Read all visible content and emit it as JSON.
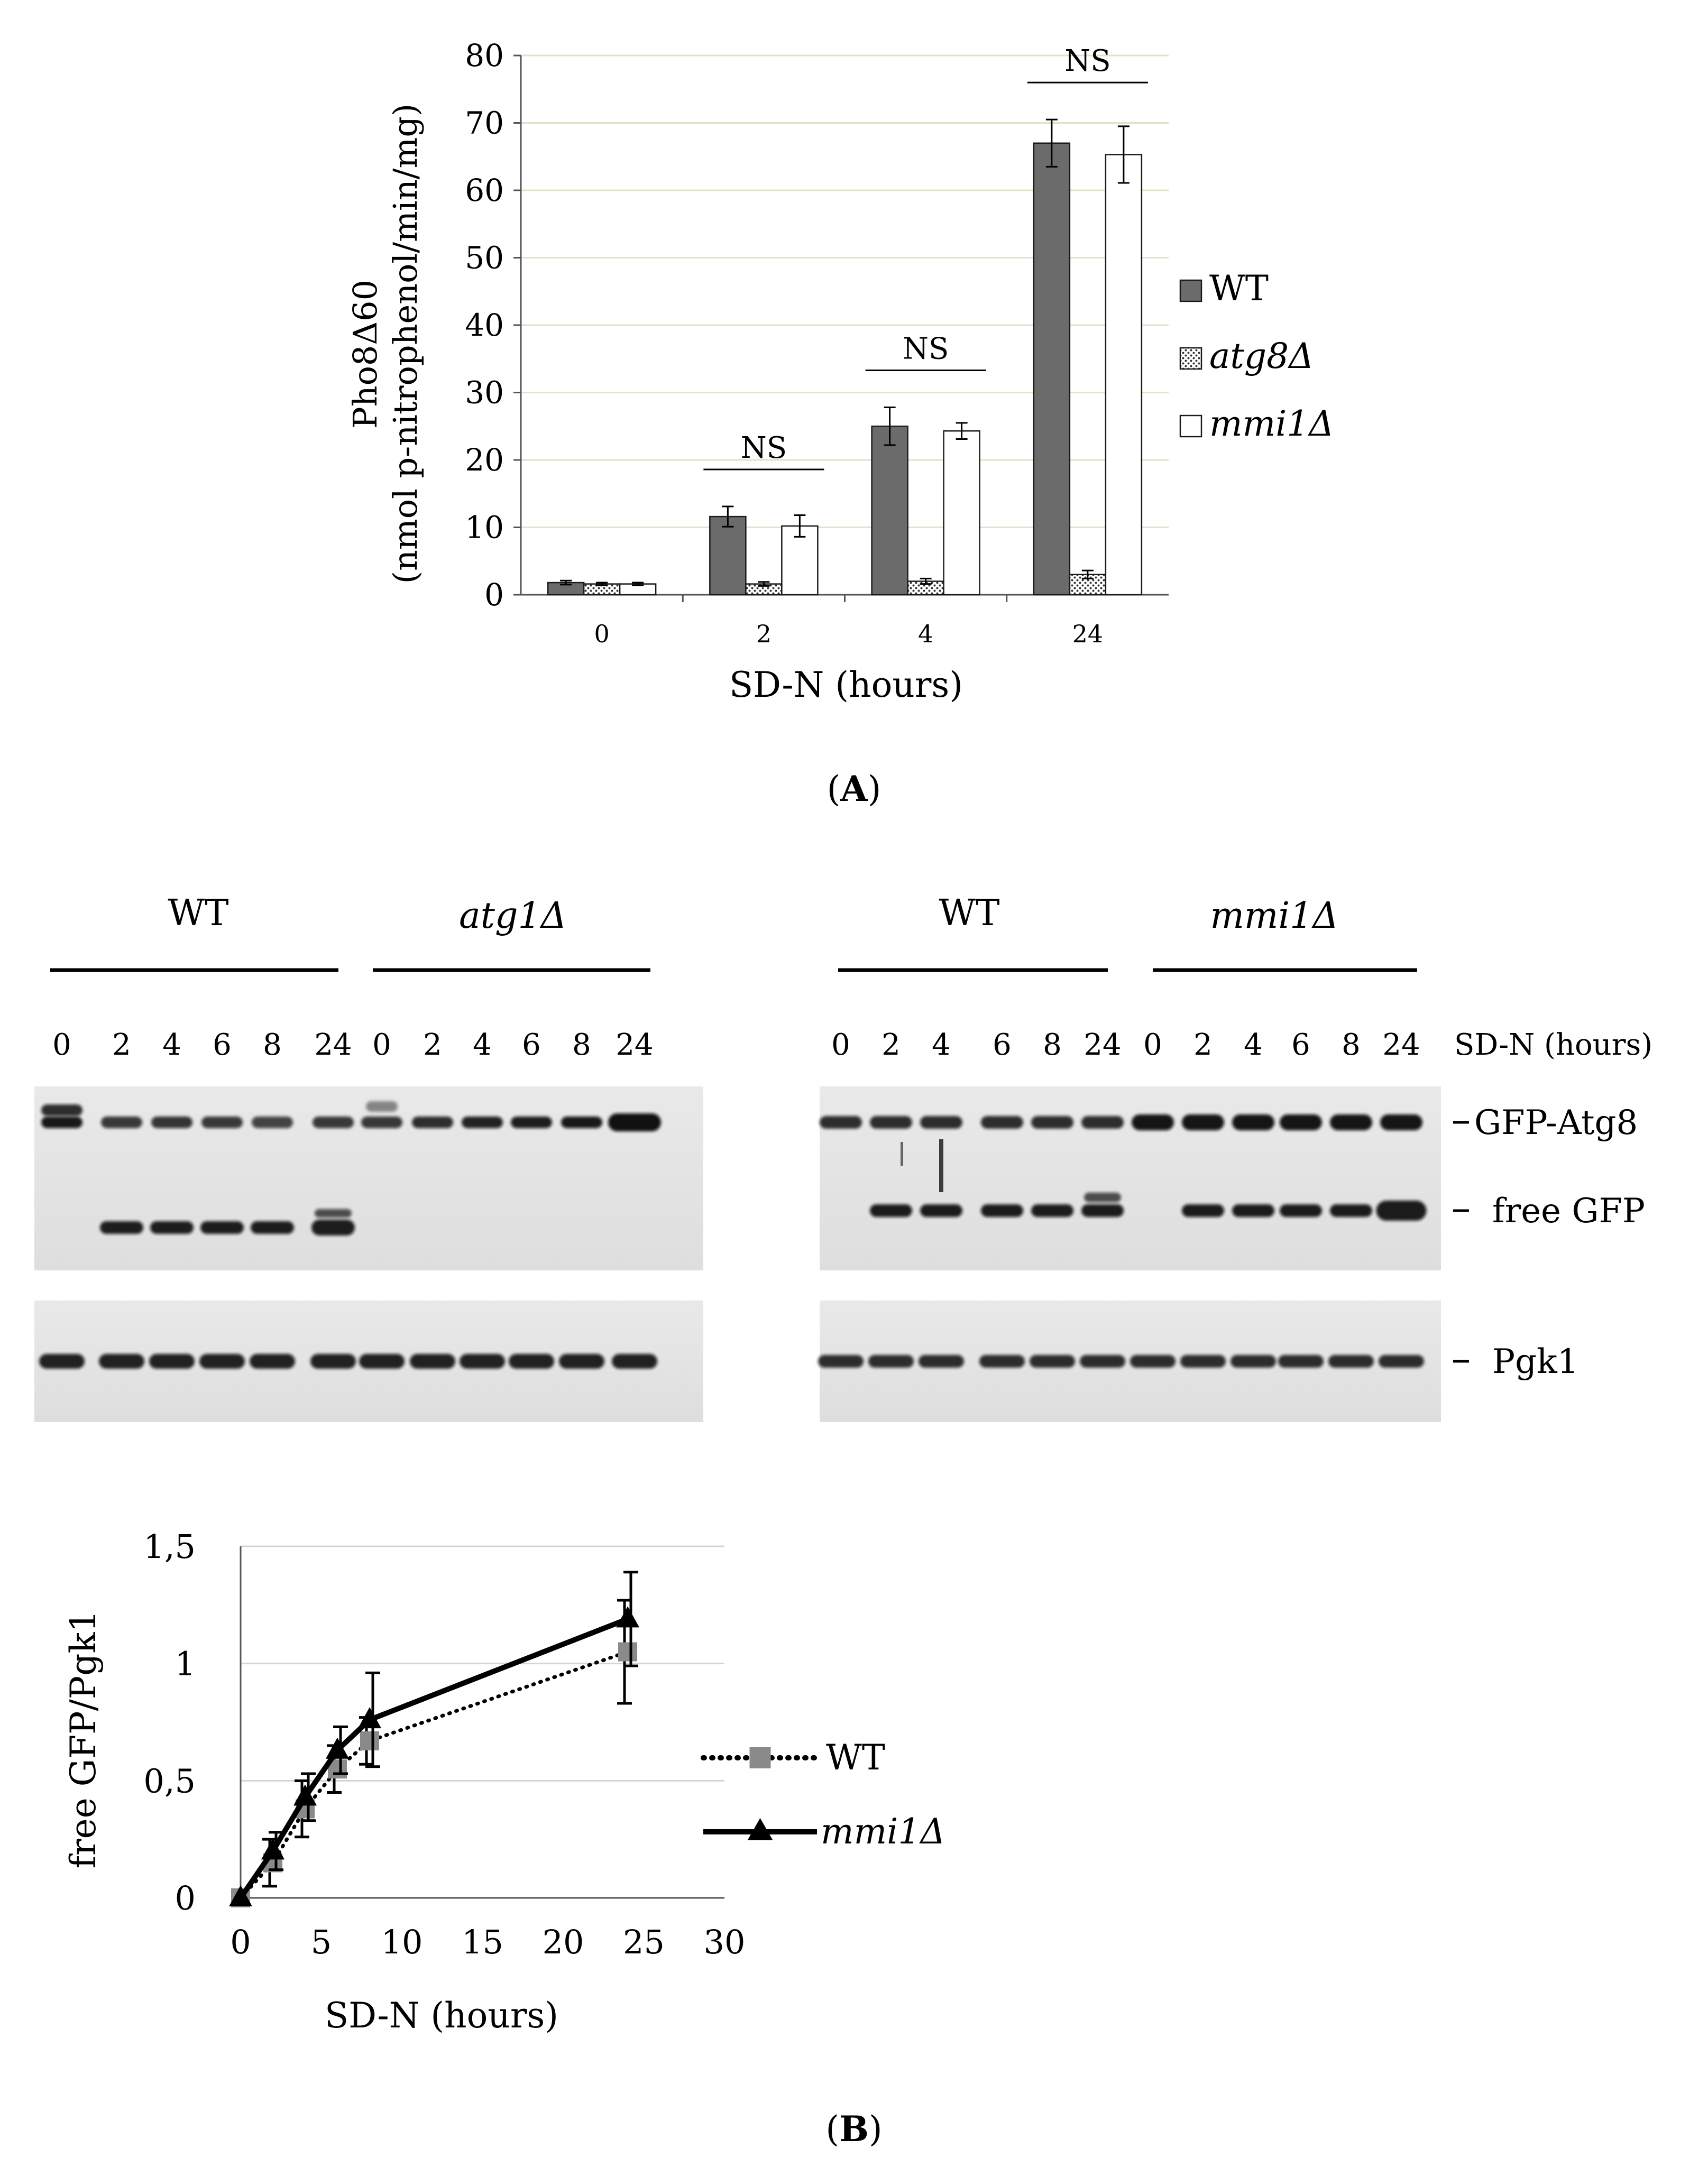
{
  "panel_labels": {
    "a": "(A)",
    "b": "(B)",
    "a_letter": "A",
    "b_letter": "B"
  },
  "chart_data": [
    {
      "type": "bar",
      "panel": "A",
      "title": "",
      "ylabel_line1": "Pho8Δ60",
      "ylabel_line2": "(nmol p-nitrophenol/min/mg)",
      "xlabel": "SD-N (hours)",
      "ylim": [
        0,
        80
      ],
      "yticks": [
        0,
        10,
        20,
        30,
        40,
        50,
        60,
        70,
        80
      ],
      "categories": [
        "0",
        "2",
        "4",
        "24"
      ],
      "series": [
        {
          "name": "WT",
          "italic": false,
          "fill": "#6b6b6b",
          "values": [
            1.8,
            11.6,
            25.0,
            67.0
          ],
          "errors": [
            0.3,
            1.5,
            2.8,
            3.5
          ]
        },
        {
          "name": "atg8Δ",
          "italic": true,
          "fill": "dotted",
          "values": [
            1.6,
            1.6,
            2.0,
            3.0
          ],
          "errors": [
            0.2,
            0.3,
            0.4,
            0.6
          ]
        },
        {
          "name": "mmi1Δ",
          "italic": true,
          "fill": "#ffffff",
          "values": [
            1.6,
            10.2,
            24.3,
            65.3
          ],
          "errors": [
            0.2,
            1.6,
            1.2,
            4.2
          ]
        }
      ],
      "significance": [
        "NS",
        "NS",
        "NS"
      ],
      "legend_position": "right"
    },
    {
      "type": "line",
      "panel": "B",
      "ylabel": "free GFP/Pgk1",
      "xlabel": "SD-N (hours)",
      "xlim": [
        0,
        30
      ],
      "ylim": [
        0,
        1.5
      ],
      "xticks": [
        0,
        5,
        10,
        15,
        20,
        25,
        30
      ],
      "yticks": [
        0,
        0.5,
        1,
        1.5
      ],
      "ytick_labels": [
        "0",
        "0,5",
        "1",
        "1,5"
      ],
      "x": [
        0,
        2,
        4,
        6,
        8,
        24
      ],
      "series": [
        {
          "name": "WT",
          "italic": false,
          "style": "dotted",
          "marker": "square",
          "color": "#8a8a8a",
          "values": [
            0,
            0.15,
            0.38,
            0.55,
            0.67,
            1.05
          ],
          "errors": [
            0,
            0.1,
            0.12,
            0.1,
            0.1,
            0.22
          ]
        },
        {
          "name": "mmi1Δ",
          "italic": true,
          "style": "solid",
          "marker": "triangle",
          "color": "#000000",
          "values": [
            0,
            0.2,
            0.43,
            0.63,
            0.76,
            1.19
          ],
          "errors": [
            0,
            0.08,
            0.1,
            0.1,
            0.2,
            0.2
          ]
        }
      ],
      "legend_position": "right"
    }
  ],
  "blot": {
    "groups_left": [
      {
        "label": "WT",
        "italic": false
      },
      {
        "label": "atg1Δ",
        "italic": true
      }
    ],
    "groups_right": [
      {
        "label": "WT",
        "italic": false
      },
      {
        "label": "mmi1Δ",
        "italic": true
      }
    ],
    "lanes": [
      "0",
      "2",
      "4",
      "6",
      "8",
      "24"
    ],
    "time_label": "SD-N (hours)",
    "band_labels": {
      "gfp_atg8": "GFP-Atg8",
      "free_gfp": "free GFP",
      "pgk1": "Pgk1"
    }
  }
}
